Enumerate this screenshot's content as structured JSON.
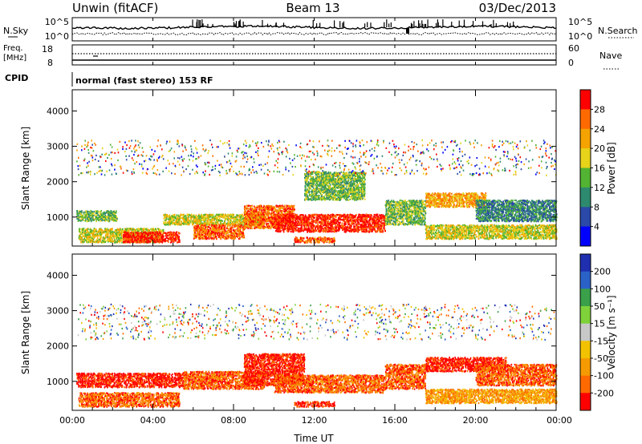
{
  "header": {
    "station": "Unwin (fitACF)",
    "beam": "Beam 13",
    "date": "03/Dec/2013"
  },
  "top_panels": {
    "nsky_label": "N.Sky",
    "nsearch_label": "N.Search",
    "noise_ticks_left": [
      "10^5",
      "10^0"
    ],
    "noise_ticks_right": [
      "10^5",
      "10^0"
    ],
    "freq_label_line1": "Freq.",
    "freq_label_line2": "[MHz]",
    "freq_ticks": [
      "18",
      "8"
    ],
    "nave_label": "Nave",
    "nave_ticks": [
      "60",
      "0"
    ],
    "cpid_label": "CPID",
    "cpid_text": "normal (fast stereo) 153 RF"
  },
  "chart_data": [
    {
      "type": "heatmap",
      "name": "power",
      "ylabel": "Slant Range [km]",
      "xlabel": "",
      "xlim": [
        0,
        24
      ],
      "ylim": [
        180,
        4600
      ],
      "ytick_labels": [
        "1000",
        "2000",
        "3000",
        "4000"
      ],
      "ytick_values": [
        1000,
        2000,
        3000,
        4000
      ],
      "colorbar": {
        "label": "Power [dB]",
        "tick_labels": [
          "4",
          "8",
          "12",
          "16",
          "20",
          "24",
          "28"
        ],
        "colors": [
          "#0000ff",
          "#2a49a8",
          "#2e8a6e",
          "#52b432",
          "#e6d31a",
          "#f5a300",
          "#ff6a00",
          "#ff0000"
        ]
      },
      "echo_regions": [
        {
          "t": [
            0.2,
            2.2
          ],
          "r": [
            900,
            1200
          ],
          "level": 3
        },
        {
          "t": [
            0.3,
            4.5
          ],
          "r": [
            300,
            700
          ],
          "level": 4
        },
        {
          "t": [
            2.5,
            5.3
          ],
          "r": [
            300,
            600
          ],
          "level": 7
        },
        {
          "t": [
            4.5,
            9.5
          ],
          "r": [
            800,
            1100
          ],
          "level": 4
        },
        {
          "t": [
            6.0,
            8.5
          ],
          "r": [
            400,
            800
          ],
          "level": 6
        },
        {
          "t": [
            8.5,
            11.0
          ],
          "r": [
            700,
            1350
          ],
          "level": 6
        },
        {
          "t": [
            10.0,
            15.5
          ],
          "r": [
            600,
            1100
          ],
          "level": 7
        },
        {
          "t": [
            11.0,
            13.0
          ],
          "r": [
            300,
            450
          ],
          "level": 6
        },
        {
          "t": [
            11.5,
            14.5
          ],
          "r": [
            1500,
            2300
          ],
          "level": 3
        },
        {
          "t": [
            15.5,
            17.5
          ],
          "r": [
            800,
            1500
          ],
          "level": 3
        },
        {
          "t": [
            17.5,
            24.0
          ],
          "r": [
            400,
            800
          ],
          "level": 4
        },
        {
          "t": [
            17.5,
            20.5
          ],
          "r": [
            1300,
            1700
          ],
          "level": 5
        },
        {
          "t": [
            20.0,
            24.0
          ],
          "r": [
            900,
            1500
          ],
          "level": 2
        },
        {
          "t": [
            0.2,
            24.0
          ],
          "r": [
            2200,
            3200
          ],
          "level": 2,
          "sparse": true
        }
      ]
    },
    {
      "type": "heatmap",
      "name": "velocity",
      "ylabel": "Slant Range [km]",
      "xlabel": "Time UT",
      "xlim": [
        0,
        24
      ],
      "ylim": [
        180,
        4600
      ],
      "xtick_labels": [
        "00:00",
        "04:00",
        "08:00",
        "12:00",
        "16:00",
        "20:00",
        "00:00"
      ],
      "xtick_values": [
        0,
        4,
        8,
        12,
        16,
        20,
        24
      ],
      "ytick_labels": [
        "1000",
        "2000",
        "3000",
        "4000"
      ],
      "ytick_values": [
        1000,
        2000,
        3000,
        4000
      ],
      "colorbar": {
        "label": "Velocity [m s⁻¹]",
        "tick_labels": [
          "200",
          "100",
          "50",
          "15",
          "-15",
          "-50",
          "-100",
          "-200"
        ],
        "colors": [
          "#1f2fb0",
          "#2a62c8",
          "#3aa04a",
          "#7fd23a",
          "#c8c8c8",
          "#f2c200",
          "#f59a00",
          "#ff6a00",
          "#ff0000"
        ]
      },
      "echo_regions": [
        {
          "t": [
            0.2,
            5.5
          ],
          "r": [
            850,
            1250
          ],
          "level": 8
        },
        {
          "t": [
            0.3,
            5.3
          ],
          "r": [
            300,
            700
          ],
          "level": 7
        },
        {
          "t": [
            5.5,
            9.5
          ],
          "r": [
            800,
            1300
          ],
          "level": 7
        },
        {
          "t": [
            8.5,
            11.5
          ],
          "r": [
            900,
            1800
          ],
          "level": 8
        },
        {
          "t": [
            10.0,
            15.5
          ],
          "r": [
            700,
            1200
          ],
          "level": 7
        },
        {
          "t": [
            11.0,
            13.0
          ],
          "r": [
            300,
            450
          ],
          "level": 8
        },
        {
          "t": [
            15.5,
            17.5
          ],
          "r": [
            800,
            1500
          ],
          "level": 7
        },
        {
          "t": [
            17.5,
            21.5
          ],
          "r": [
            1300,
            1700
          ],
          "level": 8
        },
        {
          "t": [
            17.5,
            24.0
          ],
          "r": [
            400,
            800
          ],
          "level": 6
        },
        {
          "t": [
            20.0,
            24.0
          ],
          "r": [
            900,
            1500
          ],
          "level": 7
        },
        {
          "t": [
            0.2,
            24.0
          ],
          "r": [
            2200,
            3200
          ],
          "level": 7,
          "sparse": true
        }
      ]
    }
  ]
}
